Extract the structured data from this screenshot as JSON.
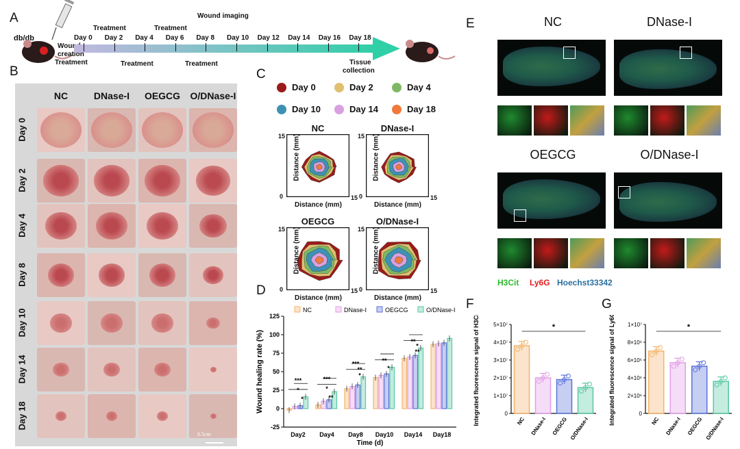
{
  "panels": {
    "a": "A",
    "b": "B",
    "c": "C",
    "d": "D",
    "e": "E",
    "f": "F",
    "g": "G"
  },
  "timeline": {
    "mouse_label": "db/db",
    "creation": [
      "Wound",
      "creation",
      "Treatment"
    ],
    "days": [
      "Day 0",
      "Day 2",
      "Day 4",
      "Day 6",
      "Day 8",
      "Day 10",
      "Day 12",
      "Day 14",
      "Day 16",
      "Day 18"
    ],
    "treatment_top": [
      "Treatment",
      "Treatment"
    ],
    "treatment_bottom": [
      "Treatment",
      "Treatment"
    ],
    "imaging": "Wound imaging",
    "tissue": [
      "Tissue",
      "collection"
    ]
  },
  "photos": {
    "columns": [
      "NC",
      "DNase-I",
      "OEGCG",
      "O/DNase-I"
    ],
    "rows": [
      "Day 0",
      "Day 2",
      "Day 4",
      "Day 8",
      "Day 10",
      "Day 14",
      "Day 18"
    ],
    "scale_bar": "0.5cm"
  },
  "contours": {
    "legend": [
      {
        "label": "Day 0",
        "color": "#9b1b1b"
      },
      {
        "label": "Day 2",
        "color": "#e0c070"
      },
      {
        "label": "Day 4",
        "color": "#7fb864"
      },
      {
        "label": "Day 10",
        "color": "#3d91b4"
      },
      {
        "label": "Day 14",
        "color": "#d9a0df"
      },
      {
        "label": "Day 18",
        "color": "#f07a3c"
      }
    ],
    "groups": [
      "NC",
      "DNase-I",
      "OEGCG",
      "O/DNase-I"
    ],
    "xlabel": "Distance (mm)",
    "ylabel": "Distance (mm)",
    "tick_min": "0",
    "tick_max": "15"
  },
  "chart_data": [
    {
      "type": "bar",
      "panel": "D",
      "categories": [
        "Day2",
        "Day4",
        "Day8",
        "Day10",
        "Day14",
        "Day18"
      ],
      "series": [
        {
          "name": "NC",
          "color": "#f4b36a",
          "values": [
            -2,
            5,
            27,
            42,
            68,
            87
          ]
        },
        {
          "name": "DNase-I",
          "color": "#e29ee7",
          "values": [
            3,
            10,
            30,
            45,
            70,
            88
          ]
        },
        {
          "name": "OEGCG",
          "color": "#5b72d9",
          "values": [
            4,
            12,
            32,
            47,
            72,
            89
          ]
        },
        {
          "name": "O/DNase-I",
          "color": "#57c9a2",
          "values": [
            16,
            23,
            43,
            56,
            82,
            95
          ]
        }
      ],
      "ylabel": "Wound healing rate (%)",
      "xlabel": "Time (d)",
      "ylim": [
        -25,
        125
      ],
      "yticks": [
        "-25",
        "0",
        "25",
        "50",
        "75",
        "100",
        "125"
      ],
      "significance": [
        "***",
        "*",
        "*",
        "***",
        "*",
        "**",
        "***",
        "**",
        "*",
        "**",
        "*",
        "**",
        "*",
        "**"
      ]
    },
    {
      "type": "bar",
      "panel": "F",
      "categories": [
        "NC",
        "DNase-I",
        "OEGCG",
        "O/DNase-I"
      ],
      "colors": [
        "#f4b36a",
        "#e29ee7",
        "#5b72d9",
        "#57c9a2"
      ],
      "values": [
        38000000.0,
        20000000.0,
        19000000.0,
        14500000.0
      ],
      "ylabel": "Integrated fluorescence signal of H3Cit",
      "ylim": [
        0,
        50000000.0
      ],
      "yticks": [
        "0",
        "1×10⁷",
        "2×10⁷",
        "3×10⁷",
        "4×10⁷",
        "5×10⁷"
      ],
      "significance": "*"
    },
    {
      "type": "bar",
      "panel": "G",
      "categories": [
        "NC",
        "DNase-I",
        "OEGCG",
        "O/DNase-I"
      ],
      "colors": [
        "#f4b36a",
        "#e29ee7",
        "#5b72d9",
        "#57c9a2"
      ],
      "values": [
        7000000.0,
        5700000.0,
        5300000.0,
        3600000.0
      ],
      "ylabel": "Integrated fluorescence signal of Ly6G",
      "ylim": [
        0,
        10000000.0
      ],
      "yticks": [
        "0",
        "2×10⁶",
        "4×10⁶",
        "6×10⁶",
        "8×10⁶",
        "1×10⁷"
      ],
      "significance": "*"
    }
  ],
  "fluorescence": {
    "groups": [
      "NC",
      "DNase-I",
      "OEGCG",
      "O/DNase-I"
    ],
    "legend": [
      {
        "label": "H3Cit",
        "color": "#2eb82e"
      },
      {
        "label": "Ly6G",
        "color": "#e02020"
      },
      {
        "label": "Hoechst33342",
        "color": "#2a6f9e"
      }
    ]
  }
}
